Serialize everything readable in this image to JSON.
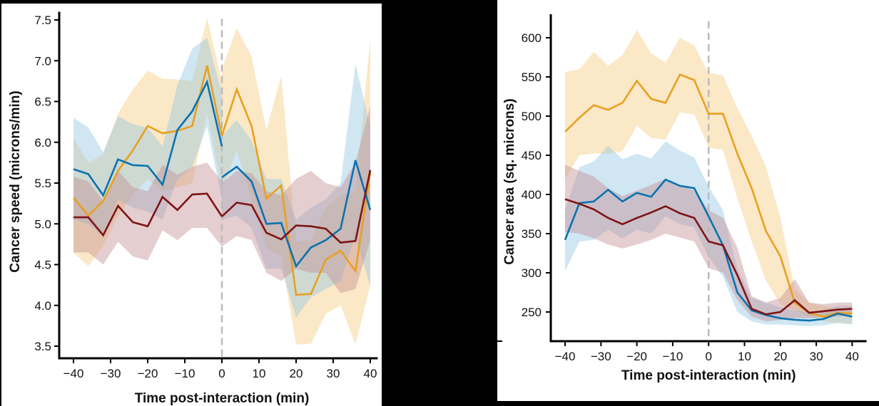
{
  "colors": {
    "orange": "#e8a020",
    "blue": "#0a72b0",
    "red": "#7e1416",
    "orange_band": "#f5c97a",
    "blue_band": "#8fc3e3",
    "red_band": "#c08a90",
    "ref_line": "#bbbbbb"
  },
  "chart_data": [
    {
      "type": "line",
      "title": "",
      "xlabel": "Time post-interaction (min)",
      "ylabel": "Cancer speed (microns/min)",
      "xlim": [
        -43,
        42
      ],
      "ylim": [
        3.35,
        7.6
      ],
      "xticks": [
        -40,
        -30,
        -20,
        -10,
        0,
        10,
        20,
        30,
        40
      ],
      "xtick_labels": [
        "−40",
        "−30",
        "−20",
        "−10",
        "0",
        "10",
        "20",
        "30",
        "40"
      ],
      "yticks": [
        3.5,
        4.0,
        4.5,
        5.0,
        5.5,
        6.0,
        6.5,
        7.0,
        7.5
      ],
      "ytick_labels": [
        "3.5",
        "4.0",
        "4.5",
        "5.0",
        "5.5",
        "6.0",
        "6.5",
        "7.0",
        "7.5"
      ],
      "reference_line_x": 0,
      "grid": false,
      "legend": "none",
      "x_pre": [
        -40,
        -36,
        -32,
        -28,
        -24,
        -20,
        -16,
        -12,
        -8,
        -4,
        0
      ],
      "x_post": [
        0,
        4,
        8,
        12,
        16,
        20,
        24,
        28,
        32,
        36,
        40
      ],
      "series": [
        {
          "name": "orange",
          "color_key": "orange",
          "pre": {
            "mean": [
              5.32,
              5.1,
              5.28,
              5.65,
              5.9,
              6.2,
              6.11,
              6.14,
              6.2,
              6.94,
              6.08
            ],
            "lower": [
              4.65,
              4.48,
              4.72,
              5.1,
              5.35,
              5.55,
              5.4,
              5.45,
              5.5,
              6.35,
              5.45
            ],
            "upper": [
              6.05,
              5.75,
              5.85,
              6.35,
              6.65,
              6.88,
              6.78,
              6.77,
              6.75,
              7.53,
              6.75
            ]
          },
          "post": {
            "mean": [
              6.08,
              6.65,
              6.2,
              5.31,
              5.47,
              4.13,
              4.14,
              4.56,
              4.67,
              4.42,
              5.63
            ],
            "lower": [
              5.4,
              5.9,
              5.3,
              4.7,
              4.6,
              3.52,
              3.53,
              3.9,
              4.0,
              3.52,
              4.25
            ],
            "upper": [
              6.9,
              7.4,
              7.05,
              6.15,
              6.82,
              4.78,
              4.8,
              5.2,
              5.35,
              5.4,
              7.27
            ]
          }
        },
        {
          "name": "blue",
          "color_key": "blue",
          "pre": {
            "mean": [
              5.67,
              5.61,
              5.35,
              5.79,
              5.72,
              5.71,
              5.48,
              6.15,
              6.38,
              6.74,
              5.95
            ],
            "lower": [
              5.05,
              5.0,
              4.85,
              5.3,
              5.2,
              5.15,
              5.05,
              5.55,
              5.7,
              6.2,
              5.3
            ],
            "upper": [
              6.3,
              6.18,
              5.88,
              6.32,
              6.22,
              6.18,
              5.95,
              6.7,
              7.15,
              7.28,
              6.6
            ]
          },
          "post": {
            "mean": [
              5.57,
              5.7,
              5.52,
              5.0,
              5.01,
              4.48,
              4.71,
              4.8,
              4.94,
              5.78,
              5.17
            ],
            "lower": [
              5.05,
              5.1,
              4.95,
              4.45,
              4.45,
              3.85,
              4.1,
              4.2,
              4.3,
              4.85,
              4.23
            ],
            "upper": [
              6.08,
              6.27,
              6.02,
              5.55,
              5.55,
              5.05,
              5.2,
              5.3,
              5.5,
              6.96,
              6.2
            ]
          }
        },
        {
          "name": "red",
          "color_key": "red",
          "pre": {
            "mean": [
              5.08,
              5.08,
              4.86,
              5.22,
              5.02,
              4.97,
              5.33,
              5.17,
              5.36,
              5.37,
              5.09
            ],
            "lower": [
              4.65,
              4.65,
              4.5,
              4.78,
              4.6,
              4.55,
              4.92,
              4.8,
              4.95,
              4.95,
              4.72
            ],
            "upper": [
              5.58,
              5.52,
              5.28,
              5.65,
              5.45,
              5.4,
              5.72,
              5.6,
              5.7,
              5.75,
              5.52
            ]
          },
          "post": {
            "mean": [
              5.09,
              5.26,
              5.23,
              4.89,
              4.81,
              4.98,
              4.97,
              4.94,
              4.77,
              4.79,
              5.66
            ],
            "lower": [
              4.72,
              4.85,
              4.8,
              4.4,
              4.3,
              4.45,
              4.4,
              4.4,
              4.15,
              4.2,
              4.8
            ],
            "upper": [
              5.5,
              5.65,
              5.62,
              5.4,
              5.35,
              5.55,
              5.65,
              5.5,
              5.45,
              5.75,
              6.45
            ]
          }
        }
      ]
    },
    {
      "type": "line",
      "title": "",
      "xlabel": "Time post-interaction (min)",
      "ylabel": "Cancer area (sq. microns)",
      "xlim": [
        -44,
        44
      ],
      "ylim": [
        212,
        630
      ],
      "xticks": [
        -40,
        -30,
        -20,
        -10,
        0,
        10,
        20,
        30,
        40
      ],
      "xtick_labels": [
        "−40",
        "−30",
        "−20",
        "−10",
        "0",
        "10",
        "20",
        "30",
        "40"
      ],
      "yticks": [
        250,
        300,
        350,
        400,
        450,
        500,
        550,
        600
      ],
      "ytick_labels": [
        "250",
        "300",
        "350",
        "400",
        "450",
        "500",
        "550",
        "600"
      ],
      "reference_line_x": 0,
      "grid": false,
      "legend": "none",
      "x": [
        -40,
        -36,
        -32,
        -28,
        -24,
        -20,
        -16,
        -12,
        -8,
        -4,
        0,
        4,
        8,
        12,
        16,
        20,
        24,
        28,
        32,
        36,
        40
      ],
      "series": [
        {
          "name": "orange",
          "color_key": "orange",
          "mean": [
            480,
            498,
            514,
            508,
            517,
            545,
            522,
            517,
            553,
            546,
            503,
            503,
            452,
            408,
            353,
            321,
            262,
            249,
            244,
            249,
            248
          ],
          "lower": [
            420,
            450,
            452,
            452,
            455,
            488,
            472,
            470,
            505,
            502,
            460,
            457,
            395,
            340,
            290,
            260,
            252,
            244,
            238,
            236,
            235
          ],
          "upper": [
            556,
            560,
            582,
            564,
            578,
            610,
            580,
            568,
            600,
            590,
            555,
            552,
            510,
            475,
            435,
            370,
            280,
            262,
            258,
            255,
            254
          ]
        },
        {
          "name": "blue",
          "color_key": "blue",
          "mean": [
            342,
            389,
            391,
            406,
            391,
            402,
            397,
            419,
            411,
            408,
            372,
            335,
            275,
            252,
            246,
            242,
            240,
            239,
            241,
            248,
            244
          ],
          "lower": [
            302,
            340,
            342,
            355,
            344,
            355,
            350,
            372,
            362,
            358,
            320,
            295,
            250,
            238,
            234,
            234,
            233,
            232,
            233,
            236,
            234
          ],
          "upper": [
            380,
            435,
            442,
            462,
            445,
            452,
            446,
            468,
            456,
            447,
            410,
            380,
            305,
            268,
            262,
            256,
            252,
            250,
            252,
            258,
            258
          ]
        },
        {
          "name": "red",
          "color_key": "red",
          "mean": [
            394,
            388,
            381,
            370,
            362,
            370,
            377,
            385,
            376,
            370,
            340,
            335,
            297,
            254,
            247,
            250,
            265,
            249,
            251,
            253,
            254
          ],
          "lower": [
            352,
            350,
            344,
            336,
            331,
            336,
            342,
            350,
            345,
            340,
            306,
            300,
            265,
            244,
            238,
            240,
            242,
            242,
            244,
            244,
            246
          ],
          "upper": [
            438,
            430,
            423,
            408,
            398,
            405,
            412,
            420,
            412,
            405,
            380,
            370,
            332,
            270,
            262,
            268,
            292,
            262,
            260,
            262,
            262
          ]
        }
      ]
    }
  ]
}
